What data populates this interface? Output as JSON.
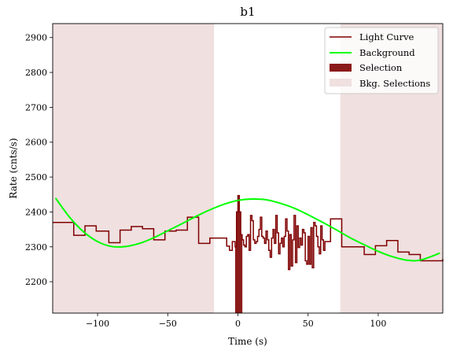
{
  "chart_data": {
    "type": "line",
    "title": "b1",
    "xlabel": "Time (s)",
    "ylabel": "Rate (cnts/s)",
    "xlim": [
      -132,
      146
    ],
    "ylim": [
      2110,
      2940
    ],
    "xticks": [
      -100,
      -50,
      0,
      50,
      100
    ],
    "xtick_labels": [
      "−100",
      "−50",
      "0",
      "50",
      "100"
    ],
    "yticks": [
      2200,
      2300,
      2400,
      2500,
      2600,
      2700,
      2800,
      2900
    ],
    "ytick_labels": [
      "2200",
      "2300",
      "2400",
      "2500",
      "2600",
      "2700",
      "2800",
      "2900"
    ],
    "grid": false,
    "legend_position": "top-right",
    "legend": [
      "Light Curve",
      "Background",
      "Selection",
      "Bkg. Selections"
    ],
    "colors": {
      "light_curve": "#7f0000",
      "background": "#00ff00",
      "selection": "#8b1a1a",
      "bkg_selection": "#f0e0e0"
    },
    "light_curve": {
      "step": "post",
      "edges": [
        -132,
        -117,
        -109,
        -101,
        -92,
        -84,
        -76,
        -68,
        -60,
        -52,
        -44,
        -36,
        -28,
        -20,
        -12,
        -8,
        -6,
        -4,
        -2,
        -1,
        0,
        1,
        2,
        3,
        4,
        5,
        6,
        7,
        8,
        9,
        10,
        11,
        12,
        13,
        14,
        15,
        16,
        17,
        18,
        19,
        20,
        21,
        22,
        23,
        24,
        25,
        26,
        27,
        28,
        29,
        30,
        31,
        32,
        33,
        34,
        35,
        36,
        37,
        38,
        39,
        40,
        41,
        42,
        43,
        44,
        45,
        46,
        47,
        48,
        49,
        50,
        51,
        52,
        53,
        54,
        55,
        56,
        57,
        58,
        59,
        60,
        61,
        62,
        66,
        74,
        82,
        90,
        98,
        106,
        114,
        122,
        130,
        138,
        146
      ],
      "values": [
        2370,
        2333,
        2360,
        2345,
        2312,
        2348,
        2358,
        2352,
        2320,
        2345,
        2348,
        2385,
        2310,
        2325,
        2325,
        2302,
        2290,
        2315,
        2300,
        2400,
        2447,
        2400,
        2335,
        2320,
        2305,
        2300,
        2330,
        2335,
        2290,
        2390,
        2375,
        2320,
        2310,
        2315,
        2330,
        2350,
        2385,
        2330,
        2325,
        2310,
        2345,
        2320,
        2290,
        2270,
        2325,
        2350,
        2310,
        2390,
        2340,
        2280,
        2310,
        2325,
        2300,
        2330,
        2380,
        2345,
        2235,
        2335,
        2245,
        2320,
        2390,
        2255,
        2360,
        2298,
        2325,
        2305,
        2350,
        2340,
        2260,
        2250,
        2330,
        2250,
        2355,
        2240,
        2370,
        2360,
        2330,
        2300,
        2280,
        2360,
        2320,
        2290,
        2315,
        2380,
        2300,
        2300,
        2278,
        2303,
        2318,
        2285,
        2278,
        2260,
        2260,
        2265
      ]
    },
    "background": {
      "x": [
        -130,
        -120,
        -110,
        -100,
        -90,
        -80,
        -70,
        -60,
        -50,
        -40,
        -30,
        -20,
        -10,
        0,
        10,
        20,
        30,
        40,
        50,
        60,
        70,
        80,
        90,
        100,
        110,
        120,
        130,
        144
      ],
      "y": [
        2440,
        2385,
        2343,
        2315,
        2301,
        2301,
        2310,
        2326,
        2346,
        2366,
        2387,
        2406,
        2422,
        2433,
        2437,
        2435,
        2425,
        2411,
        2392,
        2371,
        2349,
        2326,
        2306,
        2287,
        2272,
        2262,
        2262,
        2282
      ]
    },
    "selection": [
      [
        -2,
        3
      ]
    ],
    "bkg_selections": [
      [
        -132,
        -17
      ],
      [
        73,
        146
      ]
    ]
  }
}
